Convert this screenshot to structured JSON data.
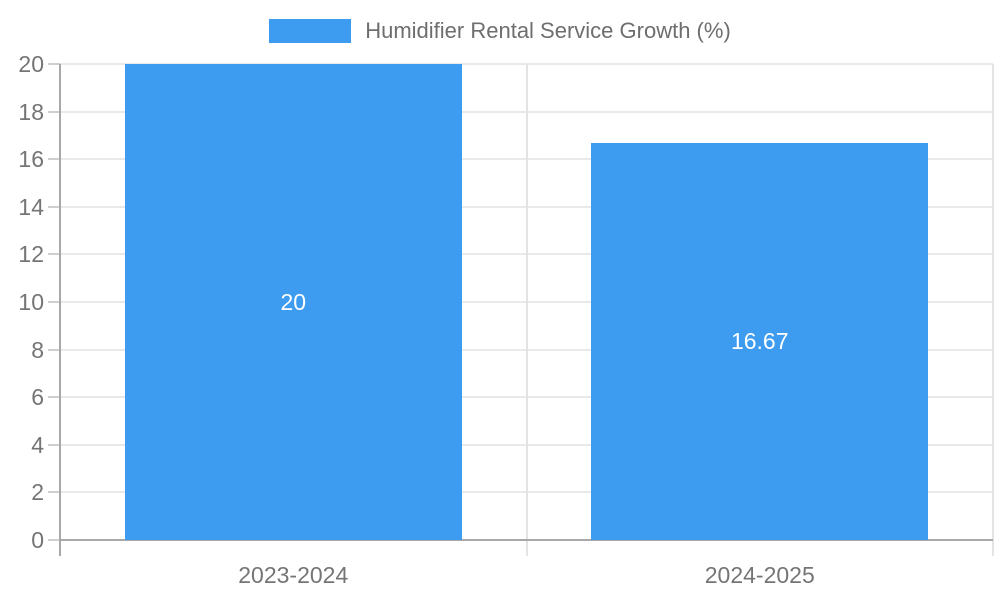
{
  "chart_data": {
    "type": "bar",
    "title": "Humidifier Rental Service Growth (%)",
    "categories": [
      "2023-2024",
      "2024-2025"
    ],
    "values": [
      20,
      16.67
    ],
    "value_labels": [
      "20",
      "16.67"
    ],
    "ylim": [
      0,
      20
    ],
    "yticks": [
      0,
      2,
      4,
      6,
      8,
      10,
      12,
      14,
      16,
      18,
      20
    ],
    "ytick_labels": [
      "0",
      "2",
      "4",
      "6",
      "8",
      "10",
      "12",
      "14",
      "16",
      "18",
      "20"
    ],
    "xlabel": "",
    "ylabel": "",
    "bar_color": "#3d9bf0",
    "value_label_color": "#ffffff",
    "legend_position": "top",
    "legend_label": "Humidifier Rental Service Growth (%)",
    "grid": true
  }
}
